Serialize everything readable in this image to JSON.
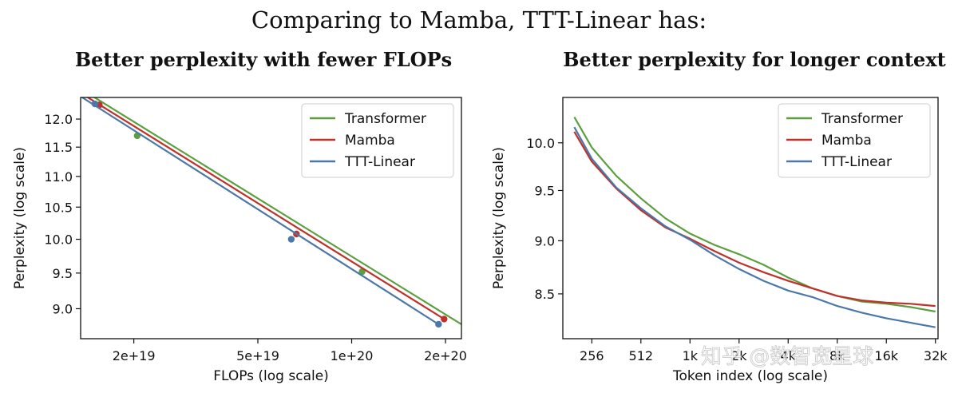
{
  "main_title": "Comparing to Mamba, TTT-Linear has:",
  "watermark": "知乎 @数智宽星球",
  "colors": {
    "Transformer": "#5aa03c",
    "Mamba": "#c0312b",
    "TTT-Linear": "#4a78a8"
  },
  "chart_data": [
    {
      "type": "line",
      "title": "Better perplexity with fewer FLOPs",
      "xlabel": "FLOPs (log scale)",
      "ylabel": "Perplexity (log scale)",
      "x_scale": "log",
      "y_scale": "log",
      "xlim": [
        1.35e+19,
        2.25e+20
      ],
      "ylim": [
        8.6,
        12.4
      ],
      "x_ticks": [
        {
          "value": 2e+19,
          "label": "2e+19"
        },
        {
          "value": 5e+19,
          "label": "5e+19"
        },
        {
          "value": 1e+20,
          "label": "1e+20"
        },
        {
          "value": 2e+20,
          "label": "2e+20"
        }
      ],
      "y_ticks": [
        {
          "value": 9.0,
          "label": "9.0"
        },
        {
          "value": 9.5,
          "label": "9.5"
        },
        {
          "value": 10.0,
          "label": "10.0"
        },
        {
          "value": 10.5,
          "label": "10.5"
        },
        {
          "value": 11.0,
          "label": "11.0"
        },
        {
          "value": 11.5,
          "label": "11.5"
        },
        {
          "value": 12.0,
          "label": "12.0"
        }
      ],
      "legend": "top-right",
      "grid": false,
      "series": [
        {
          "name": "Transformer",
          "x": [
            2.05e+19,
            1.08e+20
          ],
          "y": [
            11.7,
            9.52
          ],
          "line": [
            [
              1.45e+19,
              12.45
            ],
            [
              2.25e+20,
              8.79
            ]
          ]
        },
        {
          "name": "Mamba",
          "x": [
            1.55e+19,
            6.65e+19,
            1.98e+20
          ],
          "y": [
            12.26,
            10.08,
            8.86
          ],
          "line": [
            [
              1.38e+19,
              12.45
            ],
            [
              2e+20,
              8.85
            ]
          ]
        },
        {
          "name": "TTT-Linear",
          "x": [
            1.5e+19,
            6.4e+19,
            1.9e+20
          ],
          "y": [
            12.28,
            10.0,
            8.79
          ],
          "line": [
            [
              1.35e+19,
              12.42
            ],
            [
              1.9e+20,
              8.79
            ]
          ]
        }
      ]
    },
    {
      "type": "line",
      "title": "Better perplexity for longer context",
      "xlabel": "Token index (log scale)",
      "ylabel": "Perplexity (log scale)",
      "x_scale": "log",
      "y_scale": "log",
      "xlim": [
        170,
        34000
      ],
      "ylim": [
        8.1,
        10.5
      ],
      "x_ticks": [
        {
          "value": 256,
          "label": "256"
        },
        {
          "value": 512,
          "label": "512"
        },
        {
          "value": 1024,
          "label": "1k"
        },
        {
          "value": 2048,
          "label": "2k"
        },
        {
          "value": 4096,
          "label": "4k"
        },
        {
          "value": 8192,
          "label": "8k"
        },
        {
          "value": 16384,
          "label": "16k"
        },
        {
          "value": 32768,
          "label": "32k"
        }
      ],
      "y_ticks": [
        {
          "value": 8.5,
          "label": "8.5"
        },
        {
          "value": 9.0,
          "label": "9.0"
        },
        {
          "value": 9.5,
          "label": "9.5"
        },
        {
          "value": 10.0,
          "label": "10.0"
        }
      ],
      "legend": "top-right",
      "grid": false,
      "series": [
        {
          "name": "Transformer",
          "x": [
            200,
            256,
            362,
            512,
            724,
            1024,
            1448,
            2048,
            2896,
            4096,
            5793,
            8192,
            11585,
            16384,
            23170,
            32768
          ],
          "y": [
            10.28,
            9.95,
            9.65,
            9.42,
            9.22,
            9.07,
            8.96,
            8.87,
            8.77,
            8.65,
            8.55,
            8.48,
            8.43,
            8.41,
            8.38,
            8.34
          ]
        },
        {
          "name": "Mamba",
          "x": [
            200,
            256,
            362,
            512,
            724,
            1024,
            1448,
            2048,
            2896,
            4096,
            5793,
            8192,
            11585,
            16384,
            23170,
            32768
          ],
          "y": [
            10.12,
            9.8,
            9.52,
            9.3,
            9.13,
            9.02,
            8.9,
            8.79,
            8.7,
            8.62,
            8.55,
            8.48,
            8.44,
            8.42,
            8.41,
            8.39
          ]
        },
        {
          "name": "TTT-Linear",
          "x": [
            200,
            256,
            362,
            512,
            724,
            1024,
            1448,
            2048,
            2896,
            4096,
            5793,
            8192,
            11585,
            16384,
            23170,
            32768
          ],
          "y": [
            10.17,
            9.83,
            9.53,
            9.32,
            9.14,
            9.01,
            8.86,
            8.73,
            8.62,
            8.53,
            8.47,
            8.39,
            8.33,
            8.28,
            8.24,
            8.2
          ]
        }
      ]
    }
  ]
}
